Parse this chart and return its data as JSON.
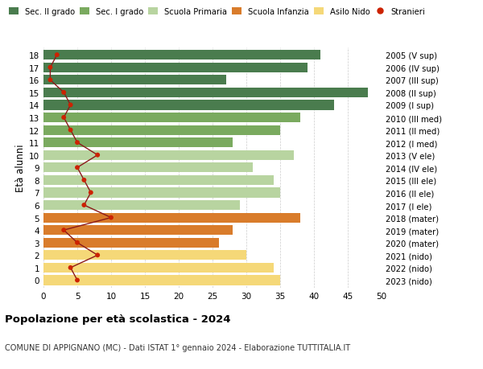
{
  "ages": [
    18,
    17,
    16,
    15,
    14,
    13,
    12,
    11,
    10,
    9,
    8,
    7,
    6,
    5,
    4,
    3,
    2,
    1,
    0
  ],
  "years": [
    "2005 (V sup)",
    "2006 (IV sup)",
    "2007 (III sup)",
    "2008 (II sup)",
    "2009 (I sup)",
    "2010 (III med)",
    "2011 (II med)",
    "2012 (I med)",
    "2013 (V ele)",
    "2014 (IV ele)",
    "2015 (III ele)",
    "2016 (II ele)",
    "2017 (I ele)",
    "2018 (mater)",
    "2019 (mater)",
    "2020 (mater)",
    "2021 (nido)",
    "2022 (nido)",
    "2023 (nido)"
  ],
  "bar_values": [
    41,
    39,
    27,
    48,
    43,
    38,
    35,
    28,
    37,
    31,
    34,
    35,
    29,
    38,
    28,
    26,
    30,
    34,
    35
  ],
  "stranieri": [
    2,
    1,
    1,
    3,
    4,
    3,
    4,
    5,
    8,
    5,
    6,
    7,
    6,
    10,
    3,
    5,
    8,
    4,
    5
  ],
  "bar_colors": {
    "sec2": "#4a7c4e",
    "sec1": "#7aaa5f",
    "primaria": "#b8d4a0",
    "infanzia": "#d97c2b",
    "nido": "#f5d878"
  },
  "age_groups": {
    "sec2": [
      18,
      17,
      16,
      15,
      14
    ],
    "sec1": [
      13,
      12,
      11
    ],
    "primaria": [
      10,
      9,
      8,
      7,
      6
    ],
    "infanzia": [
      5,
      4,
      3
    ],
    "nido": [
      2,
      1,
      0
    ]
  },
  "xlim": [
    0,
    50
  ],
  "xticks": [
    0,
    5,
    10,
    15,
    20,
    25,
    30,
    35,
    40,
    45,
    50
  ],
  "ylabel_left": "Età alunni",
  "title": "Popolazione per età scolastica - 2024",
  "subtitle": "COMUNE DI APPIGNANO (MC) - Dati ISTAT 1° gennaio 2024 - Elaborazione TUTTITALIA.IT",
  "bg_color": "#ffffff",
  "bar_height": 0.78,
  "stranieri_line_color": "#8b1a1a",
  "stranieri_dot_color": "#cc2200"
}
